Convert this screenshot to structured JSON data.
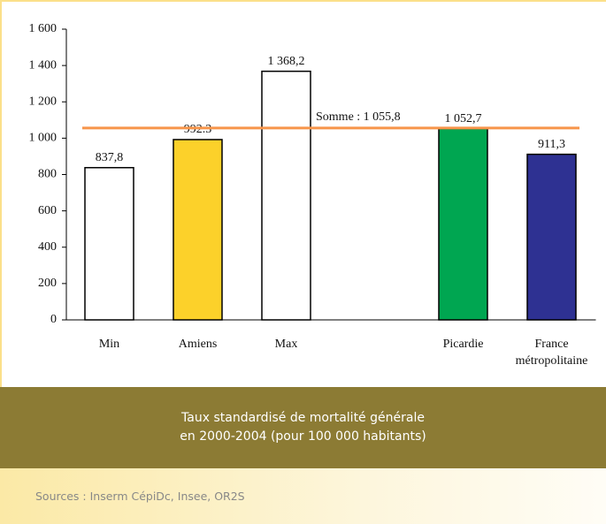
{
  "chart_data": {
    "type": "bar",
    "caption": [
      "Taux standardisé de mortalité générale",
      "en 2000-2004 (pour 100 000 habitants)"
    ],
    "source": "Sources : Inserm CépiDc, Insee, OR2S",
    "categories": [
      "Min",
      "Amiens",
      "Max",
      null,
      "Picardie",
      "France métropolitaine"
    ],
    "values": [
      837.8,
      992.3,
      1368.2,
      null,
      1052.7,
      911.3
    ],
    "value_labels": [
      "837,8",
      "992.3",
      "1 368,2",
      null,
      "1 052,7",
      "911,3"
    ],
    "colors": [
      "#ffffff",
      "#fcd12a",
      "#ffffff",
      null,
      "#00a651",
      "#2e3192"
    ],
    "reference_line": {
      "value": 1055.8,
      "label": "Somme : 1 055,8",
      "color": "#f7954a"
    },
    "ylim": [
      0,
      1600
    ],
    "yticks": [
      0,
      200,
      400,
      600,
      800,
      {
        "value": 1000,
        "label": "1 000"
      },
      {
        "value": 1200,
        "label": "1 200"
      },
      {
        "value": 1400,
        "label": "1 400"
      },
      {
        "value": 1600,
        "label": "1 600"
      }
    ]
  }
}
